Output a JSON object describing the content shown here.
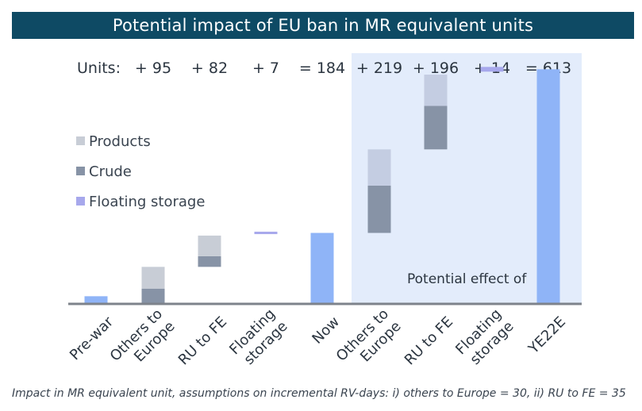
{
  "title": "Potential impact of EU ban in MR equivalent units",
  "units_label": "Units:",
  "footnote": "Impact in MR equivalent unit, assumptions on incremental RV-days: i) others to Europe = 30, ii) RU to FE = 35",
  "highlight_note": "Potential effect of",
  "colors": {
    "title_bg": "#0e4a64",
    "highlight_bg": "#e3ecfb",
    "products": "#c8cdd6",
    "crude": "#8793a6",
    "floating": "#a7a8ec",
    "total": "#8fb4f7",
    "others_products": "#c4cde2",
    "axis": "#7e838b"
  },
  "chart_data": {
    "type": "bar",
    "subtype": "waterfall",
    "title": "Potential impact of EU ban in MR equivalent units",
    "xlabel": "",
    "ylabel": "",
    "ylim": [
      0,
      650
    ],
    "grid": false,
    "legend_placement": "left",
    "categories": [
      "Pre-war",
      "Others to\nEurope",
      "RU to FE",
      "Floating\nstorage",
      "Now",
      "Others to\nEurope",
      "RU to FE",
      "Floating\nstorage",
      "YE22E"
    ],
    "unit_labels": [
      "",
      "+ 95",
      "+ 82",
      "+ 7",
      "= 184",
      "+ 219",
      "+ 196",
      "+ 14",
      "= 613"
    ],
    "legend": [
      "Products",
      "Crude",
      "Floating storage"
    ],
    "bars": [
      {
        "category": "Pre-war",
        "kind": "total",
        "base": 0,
        "segments": [
          {
            "series": "Total",
            "value": 18
          }
        ]
      },
      {
        "category": "Others to Europe",
        "kind": "delta",
        "base": 0,
        "segments": [
          {
            "series": "Crude",
            "value": 38
          },
          {
            "series": "Products",
            "value": 57
          }
        ]
      },
      {
        "category": "RU to FE",
        "kind": "delta",
        "base": 95,
        "segments": [
          {
            "series": "Crude",
            "value": 28
          },
          {
            "series": "Products",
            "value": 54
          }
        ]
      },
      {
        "category": "Floating storage",
        "kind": "delta",
        "base": 177,
        "segments": [
          {
            "series": "Floating storage",
            "value": 7
          }
        ]
      },
      {
        "category": "Now",
        "kind": "total",
        "base": 0,
        "segments": [
          {
            "series": "Total",
            "value": 184
          }
        ]
      },
      {
        "category": "Others to Europe",
        "kind": "delta",
        "base": 184,
        "segments": [
          {
            "series": "Crude",
            "value": 124
          },
          {
            "series": "Products",
            "value": 95
          }
        ]
      },
      {
        "category": "RU to FE",
        "kind": "delta",
        "base": 403,
        "segments": [
          {
            "series": "Crude",
            "value": 114
          },
          {
            "series": "Products",
            "value": 82
          }
        ]
      },
      {
        "category": "Floating storage",
        "kind": "delta",
        "base": 599,
        "segments": [
          {
            "series": "Floating storage",
            "value": 14
          }
        ]
      },
      {
        "category": "YE22E",
        "kind": "total",
        "base": 0,
        "segments": [
          {
            "series": "Total",
            "value": 613
          }
        ]
      }
    ]
  }
}
